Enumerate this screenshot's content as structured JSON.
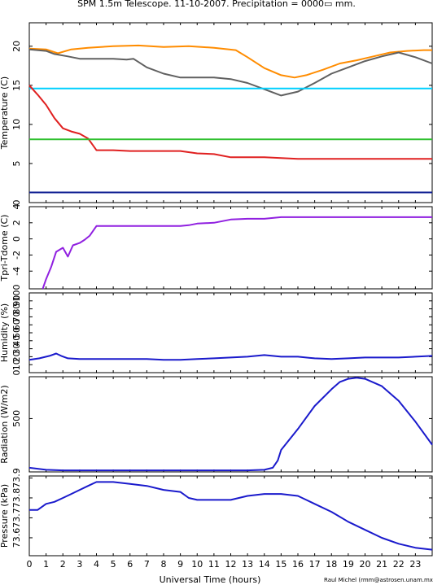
{
  "title": "SPM 1.5m Telescope. 11-10-2007. Precipitation = 0000▭ mm.",
  "xlabel": "Universal Time (hours)",
  "credit": "Raul Michel (rmm@astrosen.unam.mx)",
  "x_ticks": [
    "0",
    "1",
    "2",
    "3",
    "4",
    "5",
    "6",
    "7",
    "8",
    "9",
    "10",
    "11",
    "12",
    "13",
    "14",
    "15",
    "16",
    "17",
    "18",
    "19",
    "20",
    "21",
    "22",
    "23"
  ],
  "chart_data": [
    {
      "type": "line",
      "ylabel": "Temperature (C)",
      "xlim": [
        0,
        24
      ],
      "ylim": [
        0,
        23
      ],
      "y_ticks": [
        0,
        5,
        10,
        15,
        20
      ],
      "series": [
        {
          "color": "#ff8c00",
          "x": [
            0,
            1,
            1.7,
            2.5,
            3.5,
            5,
            6.5,
            8,
            9.5,
            11,
            12.3,
            13,
            14,
            15,
            15.8,
            16.5,
            17.5,
            18.5,
            19.5,
            20.5,
            21.5,
            22.5,
            23.5,
            24
          ],
          "y": [
            19.7,
            19.6,
            19.1,
            19.6,
            19.8,
            20,
            20.1,
            19.9,
            20,
            19.8,
            19.5,
            18.6,
            17.2,
            16.3,
            16,
            16.3,
            17,
            17.8,
            18.2,
            18.7,
            19.2,
            19.4,
            19.5,
            19.5
          ]
        },
        {
          "color": "#606060",
          "x": [
            0,
            1,
            1.5,
            2.3,
            3,
            4,
            5,
            5.8,
            6.2,
            7,
            8,
            9,
            10,
            11,
            12,
            13,
            14,
            15,
            16,
            17,
            18,
            19,
            20,
            21,
            22,
            23,
            24
          ],
          "y": [
            19.6,
            19.4,
            19,
            18.7,
            18.4,
            18.4,
            18.4,
            18.3,
            18.4,
            17.3,
            16.5,
            16,
            16,
            16,
            15.8,
            15.3,
            14.5,
            13.7,
            14.2,
            15.3,
            16.5,
            17.3,
            18.1,
            18.7,
            19.2,
            18.6,
            17.8
          ]
        },
        {
          "color": "#00d0ff",
          "x": [
            0,
            24
          ],
          "y": [
            14.6,
            14.6
          ]
        },
        {
          "color": "#e02020",
          "x": [
            0,
            0.5,
            1,
            1.5,
            2,
            2.5,
            3,
            3.5,
            4,
            5,
            6,
            7,
            8,
            9,
            10,
            11,
            12,
            13,
            14,
            15,
            16,
            17,
            18,
            19,
            20,
            21,
            22,
            23,
            24
          ],
          "y": [
            15,
            13.8,
            12.5,
            10.8,
            9.5,
            9.1,
            8.8,
            8.2,
            6.7,
            6.7,
            6.6,
            6.6,
            6.6,
            6.6,
            6.3,
            6.2,
            5.8,
            5.8,
            5.8,
            5.7,
            5.6,
            5.6,
            5.6,
            5.6,
            5.6,
            5.6,
            5.6,
            5.6,
            5.6
          ]
        },
        {
          "color": "#30c030",
          "x": [
            0,
            24
          ],
          "y": [
            8.1,
            8.1
          ]
        },
        {
          "color": "#0a1a90",
          "x": [
            0,
            24
          ],
          "y": [
            1.3,
            1.3
          ]
        }
      ]
    },
    {
      "type": "line",
      "ylabel": "Tpri-Tdome (C)",
      "xlim": [
        0,
        24
      ],
      "ylim": [
        -6.2,
        4
      ],
      "y_ticks": [
        -4,
        -2,
        0,
        2,
        4
      ],
      "series": [
        {
          "color": "#9020e0",
          "x": [
            0.8,
            1,
            1.3,
            1.6,
            2,
            2.3,
            2.6,
            3,
            3.3,
            3.6,
            4,
            5,
            6,
            7,
            8,
            9,
            9.5,
            10,
            11,
            11.5,
            12,
            13,
            14,
            15,
            16,
            17,
            18,
            19,
            20,
            21,
            22,
            23,
            24
          ],
          "y": [
            -6.2,
            -5,
            -3.5,
            -1.6,
            -1.1,
            -2.2,
            -0.8,
            -0.5,
            -0.1,
            0.4,
            1.6,
            1.6,
            1.6,
            1.6,
            1.6,
            1.6,
            1.7,
            1.9,
            2,
            2.2,
            2.4,
            2.5,
            2.5,
            2.7,
            2.7,
            2.7,
            2.7,
            2.7,
            2.7,
            2.7,
            2.7,
            2.7,
            2.7
          ]
        }
      ]
    },
    {
      "type": "line",
      "ylabel": "Humidity (%)",
      "xlim": [
        0,
        24
      ],
      "ylim": [
        0,
        100
      ],
      "y_ticks": [
        0,
        10,
        20,
        30,
        40,
        50,
        60,
        70,
        80,
        90,
        100
      ],
      "series": [
        {
          "color": "#1a1acc",
          "x": [
            0,
            0.6,
            1.2,
            1.6,
            1.9,
            2.3,
            3,
            4,
            5,
            6,
            7,
            8,
            9,
            10,
            11,
            12,
            13,
            14,
            15,
            16,
            17,
            18,
            19,
            20,
            21,
            22,
            23,
            24
          ],
          "y": [
            16,
            18,
            21,
            24,
            21,
            18,
            17,
            17,
            17,
            17,
            17,
            16,
            16,
            17,
            18,
            19,
            20,
            22,
            20,
            20,
            18,
            17,
            18,
            19,
            19,
            19,
            20,
            21
          ]
        }
      ]
    },
    {
      "type": "line",
      "ylabel": "Radiation (W/m2)",
      "xlim": [
        0,
        24
      ],
      "ylim": [
        -10,
        900
      ],
      "y_ticks": [
        500
      ],
      "series": [
        {
          "color": "#1a1acc",
          "x": [
            0,
            0.5,
            1,
            2,
            4,
            6,
            8,
            10,
            12,
            13,
            14,
            14.5,
            14.8,
            15,
            16,
            17,
            18,
            18.5,
            19,
            19.5,
            20,
            21,
            22,
            23,
            24
          ],
          "y": [
            30,
            20,
            10,
            5,
            5,
            5,
            5,
            5,
            5,
            5,
            10,
            30,
            100,
            200,
            400,
            620,
            780,
            850,
            880,
            890,
            880,
            810,
            670,
            470,
            250
          ]
        }
      ]
    },
    {
      "type": "line",
      "ylabel": "Pressure (kPa)",
      "xlim": [
        0,
        24
      ],
      "ylim": [
        73.51,
        73.91
      ],
      "y_ticks": [
        73.6,
        73.7,
        73.8,
        73.9
      ],
      "y_tick_labels": [
        "73.6",
        "73.7",
        "73.8",
        "73.9"
      ],
      "series": [
        {
          "color": "#1a1acc",
          "x": [
            0,
            0.5,
            1,
            1.5,
            2,
            2.5,
            3,
            3.5,
            4,
            5,
            6,
            7,
            8,
            9,
            9.5,
            10,
            11,
            12,
            13,
            14,
            15,
            16,
            16.5,
            17,
            18,
            19,
            20,
            21,
            22,
            23,
            24
          ],
          "y": [
            73.74,
            73.74,
            73.77,
            73.78,
            73.8,
            73.82,
            73.84,
            73.86,
            73.88,
            73.88,
            73.87,
            73.86,
            73.84,
            73.83,
            73.8,
            73.79,
            73.79,
            73.79,
            73.81,
            73.82,
            73.82,
            73.81,
            73.79,
            73.77,
            73.73,
            73.68,
            73.64,
            73.6,
            73.57,
            73.55,
            73.54
          ]
        }
      ]
    }
  ]
}
